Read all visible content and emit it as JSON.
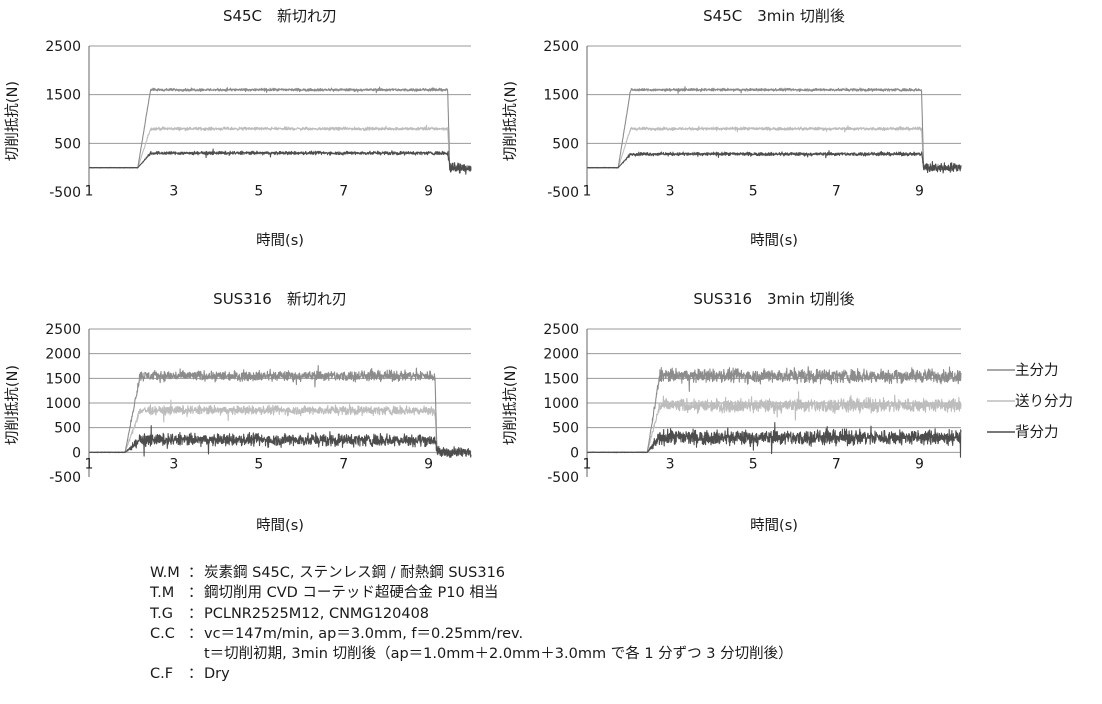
{
  "chart_data": [
    {
      "type": "line",
      "title": "S45C　新切れ刃",
      "xlabel": "時間(s)",
      "ylabel": "切削抵抗(N)",
      "xlim": [
        1,
        10
      ],
      "ylim": [
        -500,
        2500
      ],
      "xticks": [
        "1",
        "3",
        "5",
        "7",
        "9"
      ],
      "yticks": [
        "-500",
        "500",
        "1500",
        "2500"
      ],
      "cut_start_s": 2.15,
      "plateau_from_s": 2.45,
      "cut_end_s": 9.45,
      "series": [
        {
          "name": "主分力",
          "level": 1600,
          "noise": 40
        },
        {
          "name": "送り分力",
          "level": 800,
          "noise": 45
        },
        {
          "name": "背分力",
          "level": 300,
          "noise": 50
        }
      ]
    },
    {
      "type": "line",
      "title": "S45C　3min 切削後",
      "xlabel": "時間(s)",
      "ylabel": "切削抵抗(N)",
      "xlim": [
        1,
        10
      ],
      "ylim": [
        -500,
        2500
      ],
      "xticks": [
        "1",
        "3",
        "5",
        "7",
        "9"
      ],
      "yticks": [
        "-500",
        "500",
        "1500",
        "2500"
      ],
      "cut_start_s": 1.75,
      "plateau_from_s": 2.05,
      "cut_end_s": 9.05,
      "series": [
        {
          "name": "主分力",
          "level": 1600,
          "noise": 40
        },
        {
          "name": "送り分力",
          "level": 800,
          "noise": 45
        },
        {
          "name": "背分力",
          "level": 280,
          "noise": 50
        }
      ]
    },
    {
      "type": "line",
      "title": "SUS316　新切れ刃",
      "xlabel": "時間(s)",
      "ylabel": "切削抵抗(N)",
      "xlim": [
        1,
        10
      ],
      "ylim": [
        -500,
        2500
      ],
      "xticks": [
        "1",
        "3",
        "5",
        "7",
        "9"
      ],
      "yticks": [
        "-500",
        "0",
        "500",
        "1000",
        "1500",
        "2000",
        "2500"
      ],
      "cut_start_s": 1.85,
      "plateau_from_s": 2.2,
      "cut_end_s": 9.15,
      "series": [
        {
          "name": "主分力",
          "level": 1550,
          "noise": 150
        },
        {
          "name": "送り分力",
          "level": 850,
          "noise": 130
        },
        {
          "name": "背分力",
          "level": 250,
          "noise": 180
        }
      ]
    },
    {
      "type": "line",
      "title": "SUS316　3min 切削後",
      "xlabel": "時間(s)",
      "ylabel": "切削抵抗(N)",
      "xlim": [
        1,
        10
      ],
      "ylim": [
        -500,
        2500
      ],
      "xticks": [
        "1",
        "3",
        "5",
        "7",
        "9"
      ],
      "yticks": [
        "-500",
        "0",
        "500",
        "1000",
        "1500",
        "2000",
        "2500"
      ],
      "cut_start_s": 2.45,
      "plateau_from_s": 2.75,
      "cut_end_s": null,
      "series": [
        {
          "name": "主分力",
          "level": 1550,
          "noise": 200
        },
        {
          "name": "送り分力",
          "level": 950,
          "noise": 200
        },
        {
          "name": "背分力",
          "level": 300,
          "noise": 220
        }
      ]
    }
  ],
  "legend": {
    "position": "right",
    "items": [
      {
        "label": "主分力",
        "color": "#8c8c8c"
      },
      {
        "label": "送り分力",
        "color": "#bdbdbd"
      },
      {
        "label": "背分力",
        "color": "#4d4d4d"
      }
    ]
  },
  "colors": {
    "main_force": "#8c8c8c",
    "feed_force": "#bdbdbd",
    "back_force": "#4d4d4d",
    "gridline": "#9a9a9a",
    "text": "#1a1a1a"
  },
  "conditions": {
    "wm": {
      "key": "W.M",
      "sep": "：",
      "value": "炭素鋼 S45C, ステンレス鋼 / 耐熱鋼 SUS316"
    },
    "tm": {
      "key": "T.M",
      "sep": "：",
      "value": "鋼切削用 CVD コーテッド超硬合金 P10 相当"
    },
    "tg": {
      "key": "T.G",
      "sep": "：",
      "value": "PCLNR2525M12, CNMG120408"
    },
    "cc": {
      "key": "C.C",
      "sep": "：",
      "value": "vc＝147m/min, ap＝3.0mm, f＝0.25mm/rev.",
      "line2": "t＝切削初期, 3min 切削後（ap＝1.0mm＋2.0mm＋3.0mm で各 1 分ずつ 3 分切削後）"
    },
    "cf": {
      "key": "C.F",
      "sep": "：",
      "value": "Dry"
    }
  }
}
